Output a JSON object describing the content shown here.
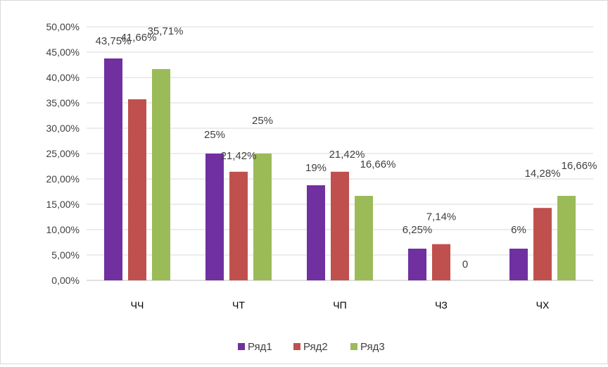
{
  "chart_data": {
    "type": "bar",
    "categories": [
      "ЧЧ",
      "ЧТ",
      "ЧП",
      "ЧЗ",
      "ЧХ"
    ],
    "series": [
      {
        "name": "Ряд1",
        "color": "#7030a0",
        "values": [
          43.75,
          25,
          18.75,
          6.25,
          6.25
        ],
        "labels": [
          "43,75%",
          "25%",
          "19%",
          "6,25%",
          "6%"
        ]
      },
      {
        "name": "Ряд2",
        "color": "#c0504d",
        "values": [
          35.71,
          21.42,
          21.42,
          7.14,
          14.28
        ],
        "labels": [
          "35,71%",
          "21,42%",
          "21,42%",
          "7,14%",
          "14,28%"
        ]
      },
      {
        "name": "Ряд3",
        "color": "#9bbb59",
        "values": [
          41.66,
          25,
          16.66,
          0,
          16.66
        ],
        "labels": [
          "41,66%",
          "25%",
          "16,66%",
          "0",
          "16,66%"
        ]
      }
    ],
    "ylim": [
      0,
      50
    ],
    "y_ticks": [
      "0,00%",
      "5,00%",
      "10,00%",
      "15,00%",
      "20,00%",
      "25,00%",
      "30,00%",
      "35,00%",
      "40,00%",
      "45,00%",
      "50,00%"
    ],
    "grid": true,
    "legend": "bottom"
  }
}
